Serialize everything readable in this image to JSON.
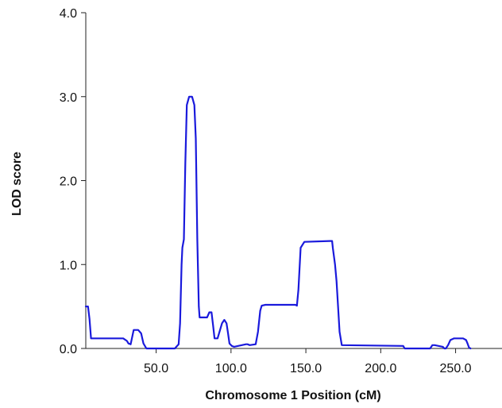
{
  "chart_data": {
    "type": "line",
    "title": "",
    "xlabel": "Chromosome 1 Position (cM)",
    "ylabel": "LOD score",
    "xlim": [
      3,
      281
    ],
    "ylim": [
      0,
      4
    ],
    "x_ticks": [
      50,
      100,
      150,
      200,
      250
    ],
    "x_tick_labels": [
      "50.0",
      "100.0",
      "150.0",
      "200.0",
      "250.0"
    ],
    "y_ticks": [
      0,
      1,
      2,
      3,
      4
    ],
    "y_tick_labels": [
      "0.0",
      "1.0",
      "2.0",
      "3.0",
      "4.0"
    ],
    "grid": false,
    "legend": "none",
    "line_color": "#1a1adc",
    "series": [
      {
        "x": [
          3.0,
          4.5,
          5.5,
          6.5,
          28.0,
          30.5,
          31.5,
          33.0,
          35.0,
          38.0,
          40.0,
          41.5,
          43.5,
          62.5,
          63.5,
          65.0,
          66.0,
          67.0,
          67.5,
          68.5,
          69.5,
          70.5,
          72.0,
          74.0,
          75.5,
          76.5,
          77.5,
          78.5,
          79.0,
          84.0,
          85.5,
          87.0,
          88.0,
          89.0,
          90.0,
          91.0,
          94.0,
          95.5,
          97.0,
          98.0,
          99.0,
          100.5,
          102.0,
          110.0,
          111.0,
          112.5,
          116.5,
          118.0,
          119.5,
          120.5,
          123.0,
          143.0,
          144.0,
          145.0,
          146.5,
          149.0,
          166.0,
          167.5,
          168.0,
          169.5,
          170.5,
          171.5,
          172.5,
          174.0,
          215.0,
          216.0,
          233.0,
          234.5,
          236.0,
          241.5,
          242.5,
          243.5,
          245.0,
          246.5,
          249.0,
          255.0,
          257.0,
          258.0,
          259.0,
          260.0
        ],
        "y": [
          0.5,
          0.5,
          0.35,
          0.12,
          0.12,
          0.09,
          0.06,
          0.05,
          0.22,
          0.22,
          0.18,
          0.06,
          0.0,
          0.0,
          0.02,
          0.05,
          0.3,
          1.0,
          1.2,
          1.3,
          2.2,
          2.9,
          3.0,
          3.0,
          2.9,
          2.5,
          1.3,
          0.5,
          0.37,
          0.37,
          0.43,
          0.43,
          0.28,
          0.12,
          0.12,
          0.12,
          0.3,
          0.34,
          0.3,
          0.18,
          0.06,
          0.03,
          0.02,
          0.05,
          0.05,
          0.04,
          0.05,
          0.2,
          0.45,
          0.51,
          0.52,
          0.52,
          0.51,
          0.7,
          1.2,
          1.27,
          1.28,
          1.28,
          1.2,
          1.0,
          0.8,
          0.5,
          0.2,
          0.04,
          0.03,
          0.0,
          0.0,
          0.04,
          0.04,
          0.02,
          0.0,
          0.0,
          0.04,
          0.1,
          0.12,
          0.12,
          0.1,
          0.06,
          0.01,
          0.0
        ]
      }
    ]
  }
}
